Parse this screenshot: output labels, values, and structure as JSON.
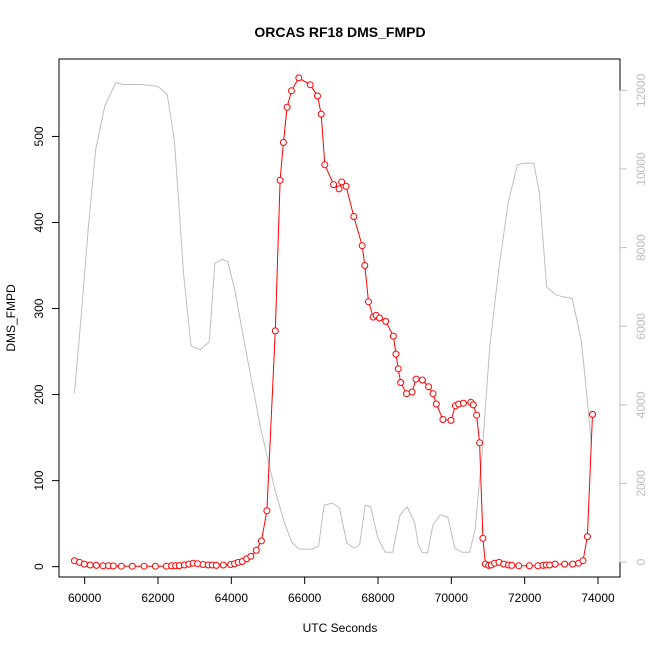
{
  "chart_data": {
    "type": "line",
    "title": "ORCAS RF18 DMS_FMPD",
    "xlabel": "UTC Seconds",
    "ylabel": "DMS_FMPD",
    "xlim": [
      59300,
      74600
    ],
    "ylim": [
      -12,
      590
    ],
    "y2lim": [
      -380,
      12800
    ],
    "x_ticks": [
      60000,
      62000,
      64000,
      66000,
      68000,
      70000,
      72000,
      74000
    ],
    "y_ticks": [
      0,
      100,
      200,
      300,
      400,
      500
    ],
    "y2_ticks": [
      0,
      2000,
      4000,
      6000,
      8000,
      10000,
      12000
    ],
    "grid": false,
    "series": [
      {
        "color": "#ff0000",
        "axis": "left",
        "points": [
          [
            59720,
            7
          ],
          [
            59860,
            5
          ],
          [
            59990,
            3
          ],
          [
            60150,
            2
          ],
          [
            60320,
            1.5
          ],
          [
            60500,
            1
          ],
          [
            60650,
            1
          ],
          [
            60780,
            0.8
          ],
          [
            61000,
            0.5
          ],
          [
            61300,
            0.5
          ],
          [
            61620,
            0.5
          ],
          [
            61930,
            0.5
          ],
          [
            62230,
            0.5
          ],
          [
            62370,
            1
          ],
          [
            62480,
            1
          ],
          [
            62580,
            1.2
          ],
          [
            62720,
            2
          ],
          [
            62840,
            3
          ],
          [
            62960,
            4
          ],
          [
            63080,
            3.5
          ],
          [
            63230,
            2.5
          ],
          [
            63370,
            2
          ],
          [
            63480,
            2
          ],
          [
            63590,
            1.5
          ],
          [
            63780,
            2
          ],
          [
            63980,
            2.5
          ],
          [
            64090,
            3.5
          ],
          [
            64190,
            5
          ],
          [
            64300,
            6
          ],
          [
            64420,
            9
          ],
          [
            64530,
            12
          ],
          [
            64680,
            19
          ],
          [
            64820,
            30
          ],
          [
            64970,
            65
          ],
          [
            65200,
            274
          ],
          [
            65330,
            449
          ],
          [
            65420,
            493
          ],
          [
            65520,
            534
          ],
          [
            65640,
            553
          ],
          [
            65840,
            568
          ],
          [
            66150,
            560
          ],
          [
            66350,
            547
          ],
          [
            66450,
            526
          ],
          [
            66550,
            467
          ],
          [
            66790,
            444
          ],
          [
            66940,
            439
          ],
          [
            67010,
            447
          ],
          [
            67130,
            442
          ],
          [
            67340,
            407
          ],
          [
            67570,
            373
          ],
          [
            67640,
            350
          ],
          [
            67740,
            308
          ],
          [
            67870,
            290
          ],
          [
            67950,
            292
          ],
          [
            68040,
            289
          ],
          [
            68210,
            285
          ],
          [
            68420,
            268
          ],
          [
            68490,
            247
          ],
          [
            68550,
            230
          ],
          [
            68620,
            214
          ],
          [
            68780,
            201
          ],
          [
            68930,
            203
          ],
          [
            69040,
            218
          ],
          [
            69210,
            217
          ],
          [
            69380,
            209
          ],
          [
            69500,
            201
          ],
          [
            69590,
            189
          ],
          [
            69770,
            171
          ],
          [
            69990,
            170
          ],
          [
            70110,
            187
          ],
          [
            70200,
            189
          ],
          [
            70330,
            190
          ],
          [
            70530,
            191
          ],
          [
            70600,
            188
          ],
          [
            70690,
            176
          ],
          [
            70770,
            144
          ],
          [
            70860,
            33
          ],
          [
            70930,
            3
          ],
          [
            71020,
            1.5
          ],
          [
            71090,
            2
          ],
          [
            71180,
            4
          ],
          [
            71300,
            5
          ],
          [
            71430,
            3
          ],
          [
            71560,
            2
          ],
          [
            71650,
            1.5
          ],
          [
            71840,
            1
          ],
          [
            72130,
            1
          ],
          [
            72360,
            1
          ],
          [
            72500,
            1.5
          ],
          [
            72590,
            2
          ],
          [
            72680,
            2
          ],
          [
            72830,
            3
          ],
          [
            73090,
            3
          ],
          [
            73310,
            3
          ],
          [
            73470,
            4
          ],
          [
            73590,
            7
          ],
          [
            73710,
            35
          ],
          [
            73850,
            177
          ]
        ]
      },
      {
        "color": "#bebebe",
        "axis": "right",
        "points": [
          [
            59720,
            4300
          ],
          [
            59900,
            6200
          ],
          [
            60100,
            8500
          ],
          [
            60300,
            10500
          ],
          [
            60550,
            11600
          ],
          [
            60850,
            12200
          ],
          [
            61050,
            12150
          ],
          [
            61550,
            12150
          ],
          [
            62000,
            12100
          ],
          [
            62250,
            11900
          ],
          [
            62450,
            10700
          ],
          [
            62700,
            7300
          ],
          [
            62900,
            5500
          ],
          [
            63150,
            5400
          ],
          [
            63400,
            5600
          ],
          [
            63550,
            7600
          ],
          [
            63750,
            7700
          ],
          [
            63900,
            7650
          ],
          [
            64100,
            6900
          ],
          [
            64350,
            5600
          ],
          [
            64600,
            4400
          ],
          [
            64800,
            3400
          ],
          [
            65000,
            2600
          ],
          [
            65200,
            1800
          ],
          [
            65450,
            1000
          ],
          [
            65650,
            500
          ],
          [
            65850,
            330
          ],
          [
            66200,
            330
          ],
          [
            66380,
            400
          ],
          [
            66530,
            1450
          ],
          [
            66750,
            1500
          ],
          [
            66950,
            1380
          ],
          [
            67150,
            480
          ],
          [
            67350,
            350
          ],
          [
            67500,
            450
          ],
          [
            67650,
            1450
          ],
          [
            67800,
            1400
          ],
          [
            68000,
            600
          ],
          [
            68200,
            250
          ],
          [
            68400,
            250
          ],
          [
            68600,
            1200
          ],
          [
            68800,
            1400
          ],
          [
            69000,
            1000
          ],
          [
            69100,
            450
          ],
          [
            69200,
            250
          ],
          [
            69350,
            230
          ],
          [
            69500,
            950
          ],
          [
            69700,
            1200
          ],
          [
            69900,
            1150
          ],
          [
            70100,
            350
          ],
          [
            70300,
            250
          ],
          [
            70500,
            250
          ],
          [
            70650,
            850
          ],
          [
            70850,
            2900
          ],
          [
            71050,
            5500
          ],
          [
            71300,
            7500
          ],
          [
            71550,
            9150
          ],
          [
            71800,
            10100
          ],
          [
            71950,
            10150
          ],
          [
            72250,
            10150
          ],
          [
            72400,
            9400
          ],
          [
            72600,
            7000
          ],
          [
            72850,
            6800
          ],
          [
            73050,
            6750
          ],
          [
            73300,
            6700
          ],
          [
            73550,
            5600
          ],
          [
            73700,
            4200
          ],
          [
            73820,
            3000
          ]
        ]
      }
    ]
  }
}
